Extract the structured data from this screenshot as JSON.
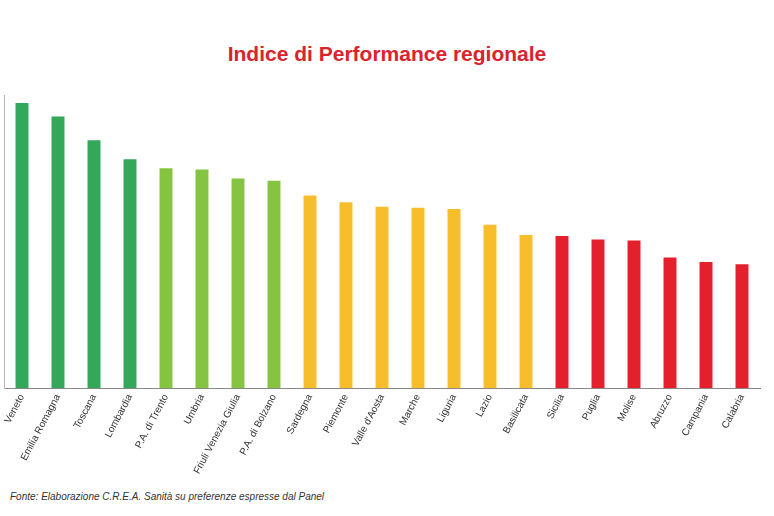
{
  "chart_data": {
    "type": "bar",
    "title": "Indice di Performance regionale",
    "source": "Fonte: Elaborazione C.R.E.A. Sanità su preferenze espresse dal Panel",
    "categories": [
      "Veneto",
      "Emilia Romagna",
      "Toscana",
      "Lombardia",
      "P.A. di Trento",
      "Umbria",
      "Friuli Venezia Giulia",
      "P.A. di Bolzano",
      "Sardegna",
      "Piemonte",
      "Valle d'Aosta",
      "Marche",
      "Liguria",
      "Lazio",
      "Basilicata",
      "Sicilia",
      "Puglia",
      "Molise",
      "Abruzzo",
      "Campania",
      "Calabria"
    ],
    "values": [
      253,
      241,
      220,
      203,
      195,
      194,
      186,
      184,
      171,
      165,
      161,
      160,
      159,
      145,
      136,
      135,
      132,
      131,
      116,
      112,
      110
    ],
    "colors": [
      "#33a85a",
      "#33a85a",
      "#33a85a",
      "#33a85a",
      "#84c441",
      "#84c441",
      "#84c441",
      "#84c441",
      "#f7bd2a",
      "#f7bd2a",
      "#f7bd2a",
      "#f7bd2a",
      "#f7bd2a",
      "#f7bd2a",
      "#f7bd2a",
      "#e3202b",
      "#e3202b",
      "#e3202b",
      "#e3202b",
      "#e3202b",
      "#e3202b"
    ],
    "ylim": [
      0,
      260
    ],
    "yticks": [],
    "grid": false,
    "tick_labels": "x",
    "data_labels": false
  }
}
